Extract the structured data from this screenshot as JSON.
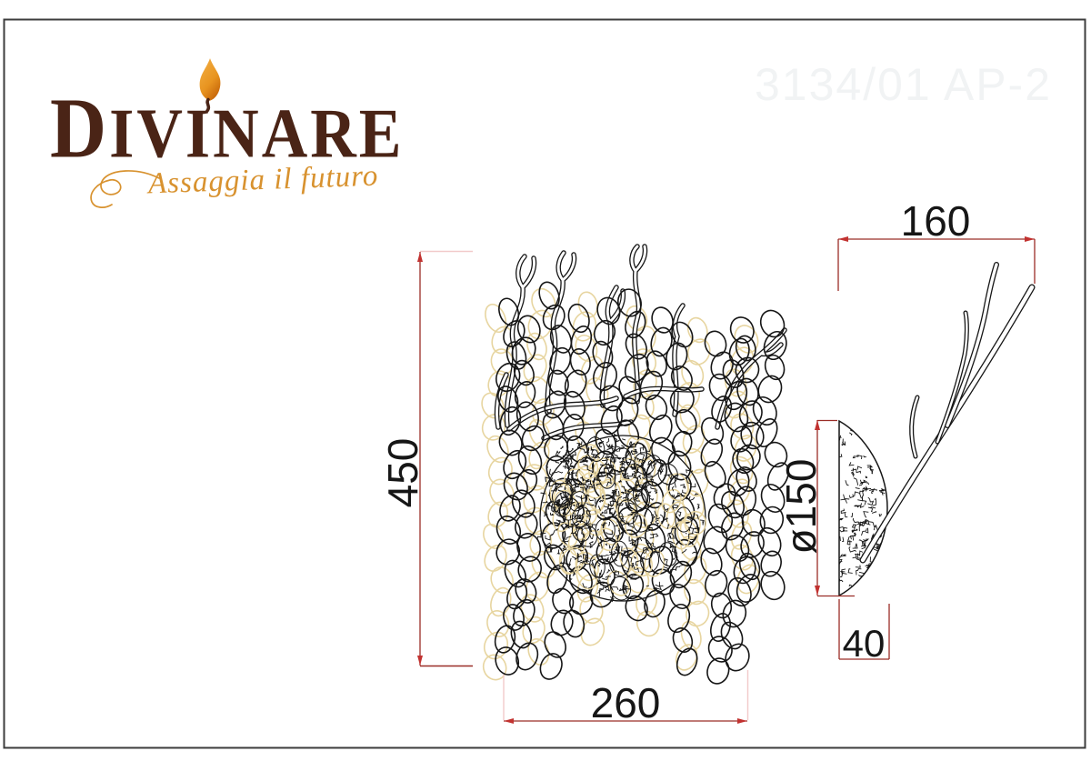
{
  "page": {
    "model_number": "3134/01 AP-2"
  },
  "logo": {
    "brand_initial": "D",
    "brand_rest": "IVINARE",
    "tagline": "Assaggia il futuro"
  },
  "drawing": {
    "front_view": {
      "height_label": "450",
      "width_label": "260"
    },
    "side_view": {
      "width_label": "160",
      "diameter_label": "ø150",
      "depth_label": "40"
    },
    "colors": {
      "brand_text": "#4a2416",
      "tagline_text": "#d8922f",
      "flame_orange": "#e89420",
      "model_number_text": "#f1f3f4",
      "ink": "#161616",
      "bead_accent": "#e7d5a0",
      "dimension_line": "#9a2d27",
      "extension_line": "#f2caca",
      "arrow": "#c23230",
      "page_border": "#3c3c3c"
    }
  }
}
